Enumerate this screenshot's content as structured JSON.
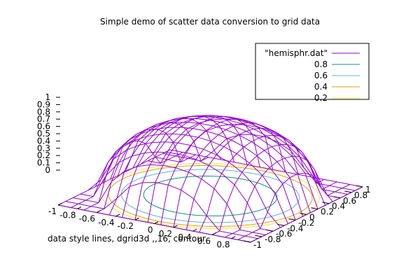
{
  "chart_data": {
    "type": "surface3d",
    "title": "Simple demo of scatter data conversion to grid data",
    "xlabel": "data style lines, dgrid3d ,,16, contour",
    "ylabel": "",
    "zlabel": "",
    "xlim": [
      -1,
      1
    ],
    "ylim": [
      -1,
      1
    ],
    "zlim": [
      0,
      1
    ],
    "x_ticks": [
      "-1",
      "-0.8",
      "-0.6",
      "-0.4",
      "-0.2",
      "0",
      "0.2",
      "0.4",
      "0.6",
      "0.8"
    ],
    "y_ticks": [
      "-1",
      "-0.8",
      "-0.6",
      "-0.4",
      "-0.2",
      "0",
      "0.2",
      "0.4",
      "0.6",
      "0.8",
      "1"
    ],
    "z_ticks": [
      "0",
      "0.1",
      "0.2",
      "0.3",
      "0.4",
      "0.5",
      "0.6",
      "0.7",
      "0.8",
      "0.9",
      "1"
    ],
    "surface": {
      "name": "\"hemisphr.dat\"",
      "color": "#9400d3",
      "grid_size": 16,
      "function": "z = sqrt(1 - x^2 - y^2), clipped at 0"
    },
    "contours": [
      {
        "name": "0.8",
        "level": 0.8,
        "color": "#009e73"
      },
      {
        "name": "0.6",
        "level": 0.6,
        "color": "#56b4e9"
      },
      {
        "name": "0.4",
        "level": 0.4,
        "color": "#e69f00"
      },
      {
        "name": "0.2",
        "level": 0.2,
        "color": "#f0e442"
      }
    ],
    "legend_position": "top-right",
    "grid": false
  }
}
